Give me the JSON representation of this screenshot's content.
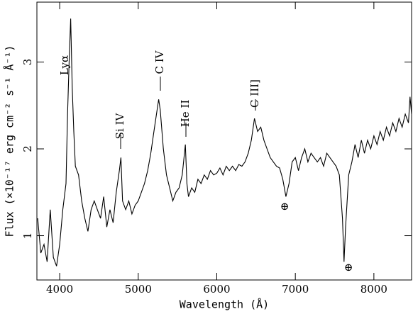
{
  "chart_data": {
    "type": "line",
    "x_label": "Wavelength (Å)",
    "y_label": "Flux (×10⁻¹⁷ erg cm⁻² s⁻¹ Å⁻¹)",
    "color": "#000000",
    "x": [
      3720,
      3760,
      3800,
      3840,
      3880,
      3920,
      3960,
      4000,
      4040,
      4080,
      4100,
      4120,
      4140,
      4160,
      4180,
      4200,
      4240,
      4280,
      4320,
      4360,
      4400,
      4440,
      4480,
      4520,
      4560,
      4600,
      4640,
      4680,
      4720,
      4760,
      4780,
      4800,
      4840,
      4880,
      4920,
      4960,
      5000,
      5040,
      5080,
      5120,
      5160,
      5200,
      5240,
      5260,
      5280,
      5320,
      5360,
      5400,
      5440,
      5480,
      5520,
      5560,
      5600,
      5620,
      5640,
      5680,
      5720,
      5760,
      5800,
      5840,
      5880,
      5920,
      5960,
      6000,
      6040,
      6080,
      6120,
      6160,
      6200,
      6240,
      6280,
      6320,
      6360,
      6400,
      6440,
      6480,
      6520,
      6560,
      6600,
      6640,
      6680,
      6720,
      6760,
      6800,
      6840,
      6880,
      6920,
      6960,
      7000,
      7040,
      7080,
      7120,
      7160,
      7200,
      7240,
      7280,
      7320,
      7360,
      7400,
      7440,
      7480,
      7520,
      7560,
      7600,
      7620,
      7640,
      7680,
      7720,
      7760,
      7800,
      7840,
      7880,
      7920,
      7960,
      8000,
      8040,
      8080,
      8120,
      8160,
      8200,
      8240,
      8280,
      8320,
      8360,
      8400,
      8440,
      8460,
      8480
    ],
    "values": [
      1.2,
      0.8,
      0.9,
      0.7,
      1.3,
      0.75,
      0.65,
      0.9,
      1.3,
      1.6,
      2.4,
      3.0,
      3.5,
      2.7,
      2.2,
      1.8,
      1.7,
      1.4,
      1.2,
      1.05,
      1.3,
      1.4,
      1.3,
      1.2,
      1.45,
      1.1,
      1.3,
      1.15,
      1.5,
      1.75,
      1.9,
      1.4,
      1.3,
      1.4,
      1.25,
      1.35,
      1.4,
      1.5,
      1.6,
      1.75,
      1.95,
      2.2,
      2.45,
      2.57,
      2.45,
      2.0,
      1.7,
      1.55,
      1.4,
      1.5,
      1.55,
      1.7,
      2.05,
      1.6,
      1.45,
      1.55,
      1.5,
      1.65,
      1.6,
      1.7,
      1.65,
      1.75,
      1.7,
      1.72,
      1.78,
      1.7,
      1.8,
      1.75,
      1.8,
      1.75,
      1.82,
      1.8,
      1.85,
      1.95,
      2.1,
      2.35,
      2.2,
      2.25,
      2.1,
      2.0,
      1.9,
      1.85,
      1.8,
      1.78,
      1.65,
      1.45,
      1.6,
      1.85,
      1.9,
      1.75,
      1.9,
      2.0,
      1.85,
      1.95,
      1.9,
      1.85,
      1.9,
      1.8,
      1.95,
      1.9,
      1.85,
      1.8,
      1.7,
      1.2,
      0.7,
      1.1,
      1.7,
      1.85,
      2.05,
      1.9,
      2.1,
      1.95,
      2.1,
      2.0,
      2.15,
      2.05,
      2.2,
      2.1,
      2.25,
      2.15,
      2.3,
      2.2,
      2.35,
      2.25,
      2.4,
      2.3,
      2.6,
      2.4
    ],
    "xlim": [
      3710,
      8480
    ],
    "ylim": [
      0.49,
      3.69
    ],
    "xticks": [
      4000,
      5000,
      6000,
      7000,
      8000
    ],
    "yticks": [
      1,
      2,
      3
    ],
    "annotations": [
      "Lyα",
      "Si IV",
      "C IV",
      "He II",
      "C III]",
      "⊕",
      "⊕"
    ]
  }
}
